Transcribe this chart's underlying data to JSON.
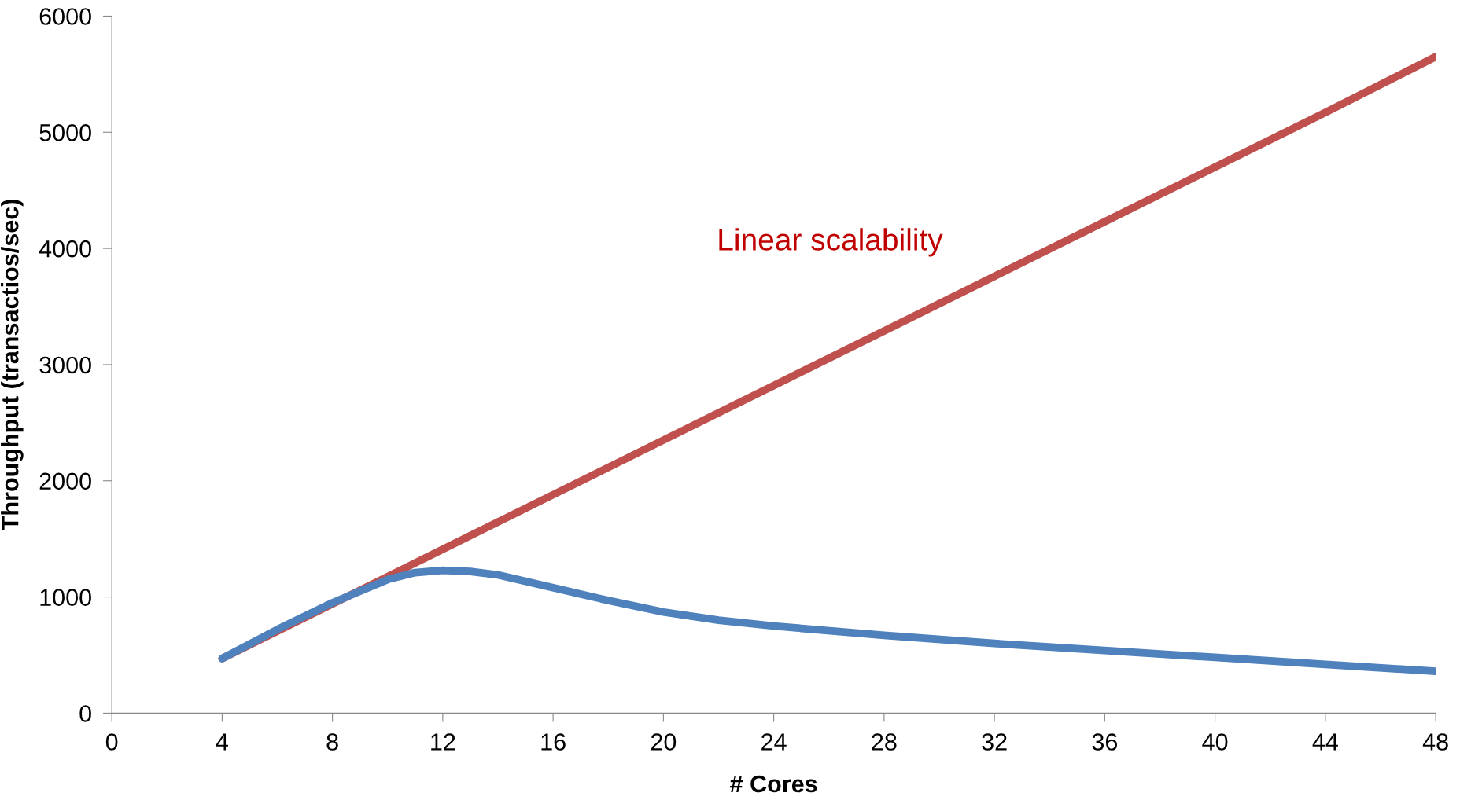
{
  "chart_data": {
    "type": "line",
    "xlabel": "# Cores",
    "ylabel": "Throughput (transactios/sec)",
    "xlim": [
      0,
      48
    ],
    "xticks": [
      0,
      4,
      8,
      12,
      16,
      20,
      24,
      28,
      32,
      36,
      40,
      44,
      48
    ],
    "ylim": [
      0,
      6000
    ],
    "yticks": [
      0,
      1000,
      2000,
      3000,
      4000,
      5000,
      6000
    ],
    "grid": false,
    "legend": false,
    "marker": "none",
    "line_style": "solid",
    "series": [
      {
        "color": "#c0504d",
        "x": [
          4,
          8,
          12,
          16,
          20,
          24,
          28,
          32,
          36,
          40,
          44,
          48
        ],
        "values": [
          470,
          940,
          1410,
          1880,
          2350,
          2820,
          3290,
          3760,
          4230,
          4700,
          5170,
          5650
        ]
      },
      {
        "color": "#4f81bd",
        "x": [
          4,
          6,
          8,
          10,
          11,
          12,
          13,
          14,
          16,
          18,
          20,
          22,
          24,
          28,
          32,
          36,
          40,
          44,
          48
        ],
        "values": [
          470,
          720,
          950,
          1150,
          1210,
          1230,
          1220,
          1190,
          1080,
          970,
          870,
          800,
          750,
          670,
          600,
          540,
          480,
          420,
          360
        ]
      }
    ],
    "annotations": [
      "Linear scalability"
    ]
  }
}
